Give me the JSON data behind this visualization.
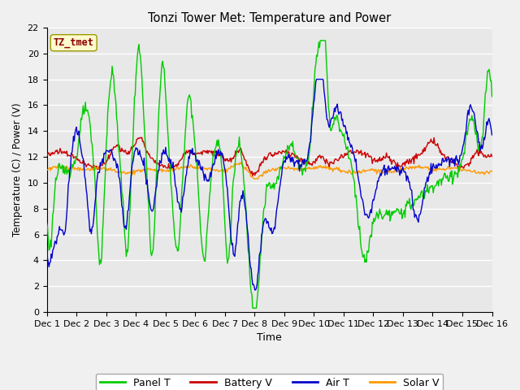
{
  "title": "Tonzi Tower Met: Temperature and Power",
  "xlabel": "Time",
  "ylabel": "Temperature (C) / Power (V)",
  "ylim": [
    0,
    22
  ],
  "yticks": [
    0,
    2,
    4,
    6,
    8,
    10,
    12,
    14,
    16,
    18,
    20,
    22
  ],
  "xtick_labels": [
    "Dec 1",
    "Dec 2",
    "Dec 3",
    "Dec 4",
    "Dec 5",
    "Dec 6",
    "Dec 7",
    "Dec 8",
    "Dec 9",
    "Dec 10",
    "Dec 11",
    "Dec 12",
    "Dec 13",
    "Dec 14",
    "Dec 15",
    "Dec 16"
  ],
  "watermark_text": "TZ_tmet",
  "watermark_color": "#8B0000",
  "watermark_bg": "#FFFACD",
  "legend_entries": [
    "Panel T",
    "Battery V",
    "Air T",
    "Solar V"
  ],
  "line_colors": [
    "#00CC00",
    "#CC0000",
    "#0000CC",
    "#FF9900"
  ],
  "grid_color": "#FFFFFF",
  "axes_bg": "#E8E8E8",
  "fig_bg": "#F0F0F0"
}
